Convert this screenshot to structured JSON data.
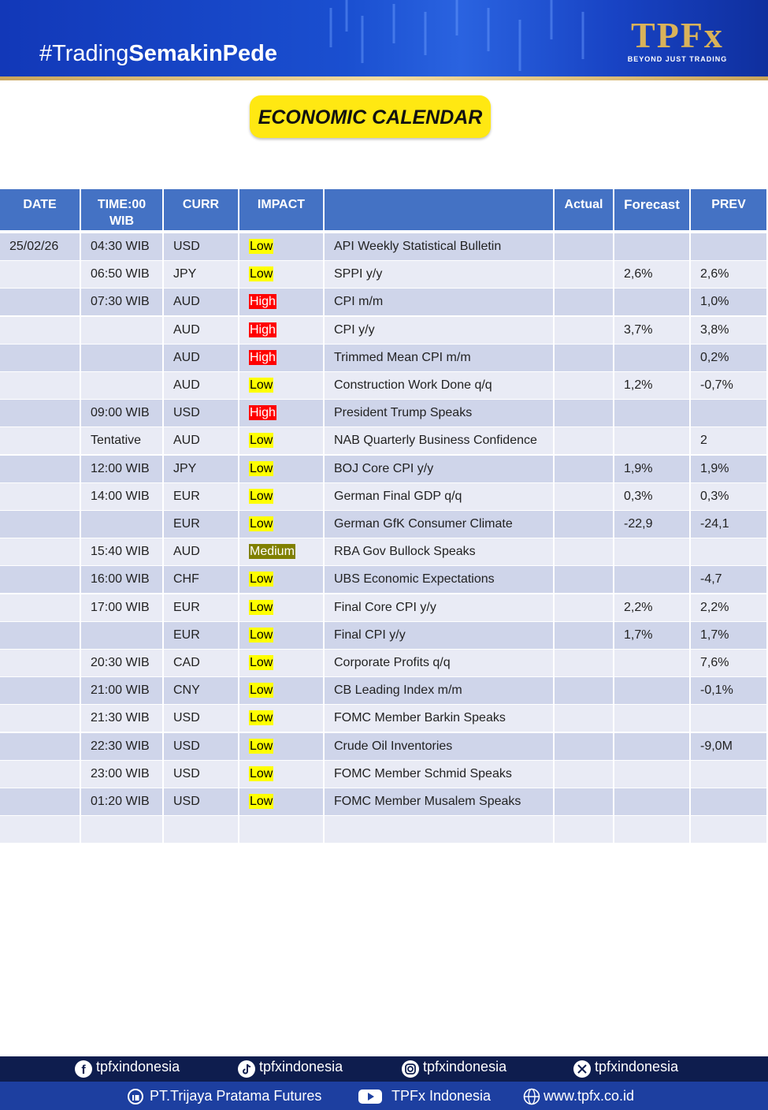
{
  "header": {
    "hashtag_prefix": "#Trading",
    "hashtag_bold": "SemakinPede",
    "logo": "TPFx",
    "tagline": "BEYOND JUST TRADING"
  },
  "title": "ECONOMIC CALENDAR",
  "table": {
    "headers": [
      "DATE",
      [
        "TIME:00",
        "WIB"
      ],
      "CURR",
      "IMPACT",
      null,
      "Actual",
      "Forecast",
      "PREV"
    ],
    "impact_colors": {
      "Low": {
        "bg": "#ffff00",
        "fg": "#000000"
      },
      "High": {
        "bg": "#ff0000",
        "fg": "#ffffff"
      },
      "Medium": {
        "bg": "#808000",
        "fg": "#ffffff"
      }
    },
    "rows": [
      [
        "25/02/26",
        "04:30 WIB",
        "USD",
        "Low",
        "API Weekly Statistical Bulletin",
        null,
        null,
        null
      ],
      [
        null,
        "06:50 WIB",
        "JPY",
        "Low",
        "SPPI y/y",
        null,
        "2,6%",
        "2,6%"
      ],
      [
        null,
        "07:30 WIB",
        "AUD",
        "High",
        "CPI m/m",
        null,
        null,
        "1,0%"
      ],
      [
        null,
        null,
        "AUD",
        "High",
        "CPI y/y",
        null,
        "3,7%",
        "3,8%"
      ],
      [
        null,
        null,
        "AUD",
        "High",
        "Trimmed Mean CPI m/m",
        null,
        null,
        "0,2%"
      ],
      [
        null,
        null,
        "AUD",
        "Low",
        "Construction Work Done q/q",
        null,
        "1,2%",
        "-0,7%"
      ],
      [
        null,
        "09:00 WIB",
        "USD",
        "High",
        "President Trump Speaks",
        null,
        null,
        null
      ],
      [
        null,
        "Tentative",
        "AUD",
        "Low",
        "NAB Quarterly Business Confidence",
        null,
        null,
        "2"
      ],
      [
        null,
        "12:00 WIB",
        "JPY",
        "Low",
        "BOJ Core CPI y/y",
        null,
        "1,9%",
        "1,9%"
      ],
      [
        null,
        "14:00 WIB",
        "EUR",
        "Low",
        "German Final GDP q/q",
        null,
        "0,3%",
        "0,3%"
      ],
      [
        null,
        null,
        "EUR",
        "Low",
        "German GfK Consumer Climate",
        null,
        "-22,9",
        "-24,1"
      ],
      [
        null,
        "15:40 WIB",
        "AUD",
        "Medium",
        "RBA Gov Bullock Speaks",
        null,
        null,
        null
      ],
      [
        null,
        "16:00 WIB",
        "CHF",
        "Low",
        "UBS Economic Expectations",
        null,
        null,
        "-4,7"
      ],
      [
        null,
        "17:00 WIB",
        "EUR",
        "Low",
        "Final Core CPI y/y",
        null,
        "2,2%",
        "2,2%"
      ],
      [
        null,
        null,
        "EUR",
        "Low",
        "Final CPI y/y",
        null,
        "1,7%",
        "1,7%"
      ],
      [
        null,
        "20:30 WIB",
        "CAD",
        "Low",
        "Corporate Profits q/q",
        null,
        null,
        "7,6%"
      ],
      [
        null,
        "21:00 WIB",
        "CNY",
        "Low",
        "CB Leading Index m/m",
        null,
        null,
        "-0,1%"
      ],
      [
        null,
        "21:30 WIB",
        "USD",
        "Low",
        "FOMC Member Barkin Speaks",
        null,
        null,
        null
      ],
      [
        null,
        "22:30 WIB",
        "USD",
        "Low",
        "Crude Oil Inventories",
        null,
        null,
        "-9,0M"
      ],
      [
        null,
        "23:00 WIB",
        "USD",
        "Low",
        "FOMC Member Schmid Speaks",
        null,
        null,
        null
      ],
      [
        null,
        "01:20 WIB",
        "USD",
        "Low",
        "FOMC Member Musalem Speaks",
        null,
        null,
        null
      ]
    ]
  },
  "footer": {
    "socials": [
      "tpfxindonesia",
      "tpfxindonesia",
      "tpfxindonesia",
      "tpfxindonesia"
    ],
    "company": "PT.Trijaya Pratama Futures",
    "youtube": "TPFx Indonesia",
    "website": "www.tpfx.co.id"
  }
}
